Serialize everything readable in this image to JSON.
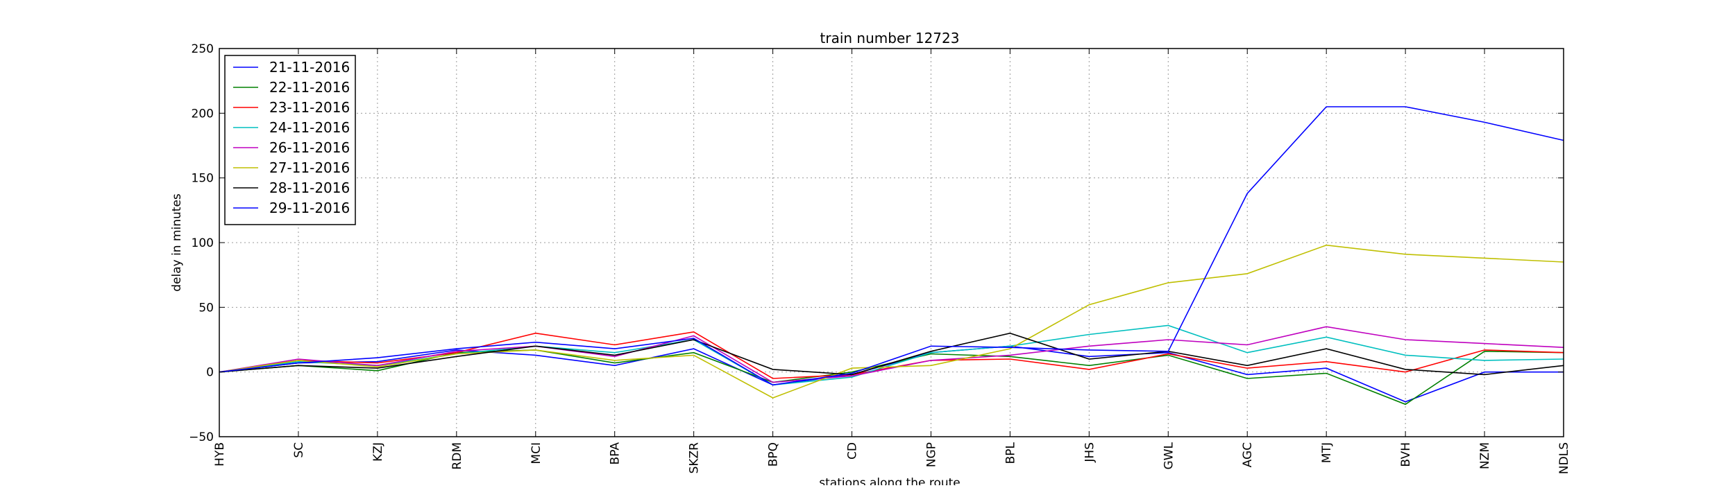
{
  "chart_data": {
    "type": "line",
    "title": "train number 12723",
    "xlabel": "stations along the route",
    "ylabel": "delay in minutes",
    "categories": [
      "HYB",
      "SC",
      "KZJ",
      "RDM",
      "MCI",
      "BPA",
      "SKZR",
      "BPQ",
      "CD",
      "NGP",
      "BPL",
      "JHS",
      "GWL",
      "AGC",
      "MTJ",
      "BVH",
      "NZM",
      "NDLS"
    ],
    "ylim": [
      -50,
      250
    ],
    "yticks": [
      -50,
      0,
      50,
      100,
      150,
      200,
      250
    ],
    "grid": true,
    "legend_position": "top-left",
    "series": [
      {
        "name": "21-11-2016",
        "color": "#0000ff",
        "values": [
          0,
          7,
          8,
          17,
          13,
          5,
          18,
          -10,
          -2,
          15,
          20,
          12,
          15,
          -2,
          3,
          -23,
          0,
          0
        ]
      },
      {
        "name": "22-11-2016",
        "color": "#008000",
        "values": [
          0,
          5,
          1,
          15,
          17,
          7,
          15,
          -8,
          0,
          14,
          12,
          5,
          13,
          -5,
          -1,
          -25,
          16,
          15
        ]
      },
      {
        "name": "23-11-2016",
        "color": "#ff0000",
        "values": [
          0,
          9,
          7,
          15,
          30,
          21,
          31,
          -5,
          -2,
          9,
          10,
          2,
          14,
          3,
          8,
          0,
          17,
          15
        ]
      },
      {
        "name": "24-11-2016",
        "color": "#00bfbf",
        "values": [
          0,
          8,
          5,
          14,
          20,
          15,
          25,
          -10,
          -4,
          15,
          20,
          29,
          36,
          15,
          27,
          13,
          9,
          10
        ]
      },
      {
        "name": "26-11-2016",
        "color": "#bf00bf",
        "values": [
          0,
          10,
          5,
          16,
          20,
          12,
          28,
          -8,
          -3,
          9,
          13,
          20,
          25,
          21,
          35,
          25,
          22,
          19
        ]
      },
      {
        "name": "27-11-2016",
        "color": "#bfbf00",
        "values": [
          0,
          9,
          4,
          14,
          17,
          9,
          13,
          -20,
          3,
          5,
          18,
          52,
          69,
          76,
          98,
          91,
          88,
          85
        ]
      },
      {
        "name": "28-11-2016",
        "color": "#000000",
        "values": [
          0,
          5,
          3,
          12,
          20,
          13,
          25,
          2,
          -2,
          16,
          30,
          10,
          16,
          5,
          18,
          2,
          -2,
          5
        ]
      },
      {
        "name": "29-11-2016",
        "color": "#0000ff",
        "values": [
          0,
          7,
          11,
          18,
          23,
          18,
          26,
          -10,
          -1,
          20,
          19,
          17,
          16,
          138,
          205,
          205,
          193,
          179
        ]
      }
    ]
  }
}
